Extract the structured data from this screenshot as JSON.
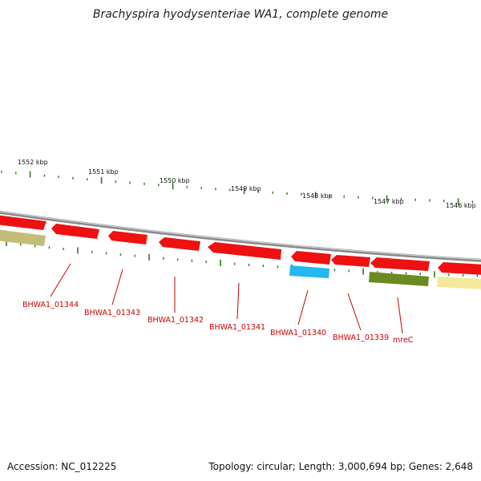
{
  "title": "Brachyspira hyodysenteriae WA1, complete genome",
  "accession": "Accession: NC_012225",
  "topology": "Topology: circular; Length: 3,000,694 bp; Genes: 2,648",
  "ruler": {
    "tick_labels": [
      "1552 kbp",
      "1551 kbp",
      "1550 kbp",
      "1549 kbp",
      "1548 kbp",
      "1547 kbp",
      "1546 kbp"
    ],
    "tick_color": "#2e7d1e"
  },
  "colors": {
    "backbone": "#8a8a8a",
    "forward_gene": "#ee1111",
    "label": "#cc0000",
    "cyan_gene": "#22b8f0",
    "olive_gene": "#6b8a22",
    "khaki_gene": "#c4bd78",
    "pale_gene": "#f3e99a"
  },
  "genes": [
    {
      "label": "BHWA1_01344",
      "color": "#ee1111"
    },
    {
      "label": "BHWA1_01343",
      "color": "#ee1111"
    },
    {
      "label": "BHWA1_01342",
      "color": "#ee1111"
    },
    {
      "label": "BHWA1_01341",
      "color": "#ee1111"
    },
    {
      "label": "BHWA1_01340",
      "color": "#22b8f0"
    },
    {
      "label": "BHWA1_01339",
      "color": "#ee1111"
    },
    {
      "label": "mreC",
      "color": "#6b8a22"
    }
  ]
}
